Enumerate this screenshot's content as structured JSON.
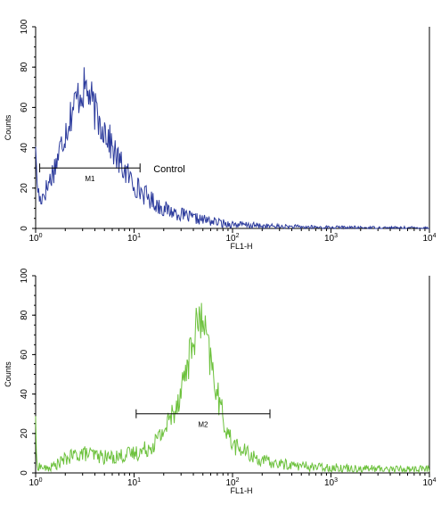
{
  "chart_data": [
    {
      "type": "line",
      "scale": "log-x",
      "xlabel": "FL1-H",
      "ylabel": "Counts",
      "xlim": [
        1,
        10000
      ],
      "ylim": [
        0,
        100
      ],
      "x_ticks": [
        {
          "base": "10",
          "exp": "0"
        },
        {
          "base": "10",
          "exp": "1"
        },
        {
          "base": "10",
          "exp": "2"
        },
        {
          "base": "10",
          "exp": "3"
        },
        {
          "base": "10",
          "exp": "4"
        }
      ],
      "y_ticks": [
        0,
        20,
        40,
        60,
        80,
        100
      ],
      "annotation": "Control",
      "marker": {
        "label": "M1",
        "range": [
          1.1,
          11.5
        ],
        "y": 30
      },
      "series": [
        {
          "color": "#2b3a9c",
          "points": [
            [
              1,
              45
            ],
            [
              1.02,
              25
            ],
            [
              1.1,
              14
            ],
            [
              1.3,
              20
            ],
            [
              1.6,
              32
            ],
            [
              2.0,
              48
            ],
            [
              2.4,
              60
            ],
            [
              2.8,
              67
            ],
            [
              3.2,
              70
            ],
            [
              3.6,
              65
            ],
            [
              4.0,
              58
            ],
            [
              4.5,
              52
            ],
            [
              5.0,
              50
            ],
            [
              6.0,
              40
            ],
            [
              7.0,
              33
            ],
            [
              8.5,
              27
            ],
            [
              10,
              22
            ],
            [
              12,
              18
            ],
            [
              15,
              14
            ],
            [
              18,
              11
            ],
            [
              22,
              9
            ],
            [
              30,
              7
            ],
            [
              40,
              5
            ],
            [
              55,
              4
            ],
            [
              80,
              2.5
            ],
            [
              120,
              1.8
            ],
            [
              160,
              1.5
            ],
            [
              200,
              1.2
            ],
            [
              300,
              0.9
            ],
            [
              600,
              0.6
            ],
            [
              1500,
              0.4
            ],
            [
              5000,
              0.3
            ],
            [
              10000,
              0.3
            ]
          ]
        }
      ]
    },
    {
      "type": "line",
      "scale": "log-x",
      "xlabel": "FL1-H",
      "ylabel": "Counts",
      "xlim": [
        1,
        10000
      ],
      "ylim": [
        0,
        100
      ],
      "x_ticks": [
        {
          "base": "10",
          "exp": "0"
        },
        {
          "base": "10",
          "exp": "1"
        },
        {
          "base": "10",
          "exp": "2"
        },
        {
          "base": "10",
          "exp": "3"
        },
        {
          "base": "10",
          "exp": "4"
        }
      ],
      "y_ticks": [
        0,
        20,
        40,
        60,
        80,
        100
      ],
      "marker": {
        "label": "M2",
        "range": [
          10.5,
          240
        ],
        "y": 30
      },
      "series": [
        {
          "color": "#6cc13c",
          "points": [
            [
              1,
              32
            ],
            [
              1.02,
              4
            ],
            [
              1.3,
              2
            ],
            [
              1.6,
              4
            ],
            [
              2.0,
              7
            ],
            [
              2.5,
              9
            ],
            [
              3.0,
              10
            ],
            [
              4.0,
              9
            ],
            [
              5.0,
              8
            ],
            [
              6.0,
              8
            ],
            [
              8.0,
              9
            ],
            [
              10,
              10
            ],
            [
              12,
              11
            ],
            [
              15,
              14
            ],
            [
              18,
              18
            ],
            [
              22,
              25
            ],
            [
              27,
              35
            ],
            [
              32,
              48
            ],
            [
              37,
              60
            ],
            [
              42,
              72
            ],
            [
              46,
              78
            ],
            [
              50,
              75
            ],
            [
              55,
              66
            ],
            [
              60,
              56
            ],
            [
              70,
              40
            ],
            [
              80,
              28
            ],
            [
              95,
              17
            ],
            [
              110,
              13
            ],
            [
              140,
              10
            ],
            [
              180,
              7
            ],
            [
              250,
              5
            ],
            [
              400,
              4
            ],
            [
              700,
              3
            ],
            [
              1500,
              2.5
            ],
            [
              4000,
              2
            ],
            [
              10000,
              2
            ]
          ]
        }
      ]
    }
  ]
}
